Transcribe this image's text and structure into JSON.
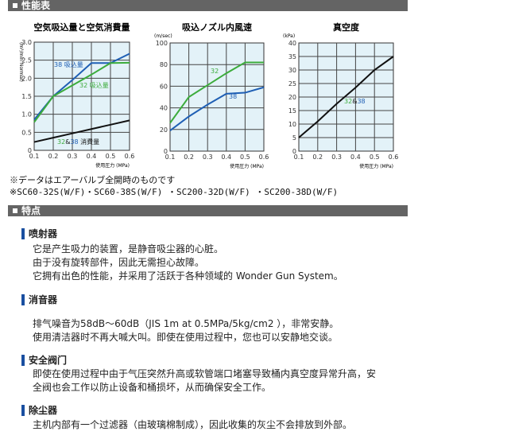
{
  "sections": {
    "performance": "性能表",
    "features": "特点"
  },
  "chart_data": [
    {
      "type": "line",
      "title": "空気吸込量と空気消費量",
      "ylabel": "(m³/min Normal)",
      "xlabel": "使用圧力 (MPa)",
      "x": [
        0.1,
        0.2,
        0.3,
        0.4,
        0.5,
        0.6
      ],
      "xticks": [
        "0.1",
        "0.2",
        "0.3",
        "0.4",
        "0.5",
        "0.6"
      ],
      "yticks": [
        "0",
        "0.5",
        "1.0",
        "1.5",
        "2.0",
        "2.5",
        "3.0"
      ],
      "ylim": [
        0,
        3.0
      ],
      "grid": true,
      "series": [
        {
          "name": "38 吸込量",
          "color": "#1f5fb4",
          "values": [
            0.85,
            1.5,
            1.95,
            2.42,
            2.42,
            2.68
          ]
        },
        {
          "name": "32 吸込量",
          "color": "#3cac3c",
          "values": [
            0.78,
            1.5,
            1.8,
            2.1,
            2.42,
            2.43
          ]
        },
        {
          "name": "32&38 消費量",
          "color": "#111111",
          "values": [
            0.23,
            0.35,
            0.47,
            0.59,
            0.71,
            0.83
          ]
        }
      ]
    },
    {
      "type": "line",
      "title": "吸込ノズル内風速",
      "ylabel": "(m/sec)",
      "xlabel": "使用圧力 (MPa)",
      "x": [
        0.1,
        0.2,
        0.3,
        0.4,
        0.5,
        0.6
      ],
      "xticks": [
        "0.1",
        "0.2",
        "0.3",
        "0.4",
        "0.5",
        "0.6"
      ],
      "yticks": [
        "0",
        "20",
        "40",
        "60",
        "80",
        "100"
      ],
      "ylim": [
        0,
        100
      ],
      "grid": true,
      "series": [
        {
          "name": "32",
          "color": "#3cac3c",
          "values": [
            26,
            50,
            61,
            72,
            82,
            82
          ]
        },
        {
          "name": "38",
          "color": "#1f5fb4",
          "values": [
            19,
            32,
            43,
            53,
            54,
            59
          ]
        }
      ]
    },
    {
      "type": "line",
      "title": "真空度",
      "ylabel": "(kPa)",
      "xlabel": "使用圧力 (MPa)",
      "x": [
        0.1,
        0.2,
        0.3,
        0.4,
        0.5,
        0.6
      ],
      "xticks": [
        "0.1",
        "0.2",
        "0.3",
        "0.4",
        "0.5",
        "0.6"
      ],
      "yticks": [
        "0",
        "5",
        "10",
        "15",
        "20",
        "25",
        "30",
        "35",
        "40"
      ],
      "ylim": [
        0,
        40
      ],
      "grid": true,
      "series": [
        {
          "name": "32&38",
          "color": "#111111",
          "values": [
            5,
            11,
            17.5,
            23.5,
            30,
            35
          ]
        }
      ]
    }
  ],
  "notes": [
    "※データはエアーバルブ全開時のものです",
    "※SC60-32S(W/F)・SC60-38S(W/F) ・SC200-32D(W/F) ・SC200-38D(W/F)"
  ],
  "features": [
    {
      "title": "喷射器",
      "lines": [
        "它是产生吸力的装置，是静音吸尘器的心脏。",
        "由于没有旋转部件，因此无需担心故障。",
        "它拥有出色的性能，并采用了活跃于各种领域的 Wonder Gun System。"
      ]
    },
    {
      "title": "消音器",
      "lines": [
        "排气噪音为58dB～60dB（JIS 1m at 0.5MPa/5kg/cm2 ），非常安静。",
        "使用清洁器时不再大喊大叫。即使在使用过程中，您也可以安静地交谈。"
      ]
    },
    {
      "title": "安全阀门",
      "lines": [
        "即使在使用过程中由于气压突然升高或软管端口堵塞导致桶内真空度异常升高，安",
        "全阀也会工作以防止设备和桶损坏，从而确保安全工作。"
      ]
    },
    {
      "title": "除尘器",
      "lines": [
        "主机内部有一个过滤器（由玻璃棉制成），因此收集的灰尘不会排放到外部。"
      ]
    }
  ]
}
